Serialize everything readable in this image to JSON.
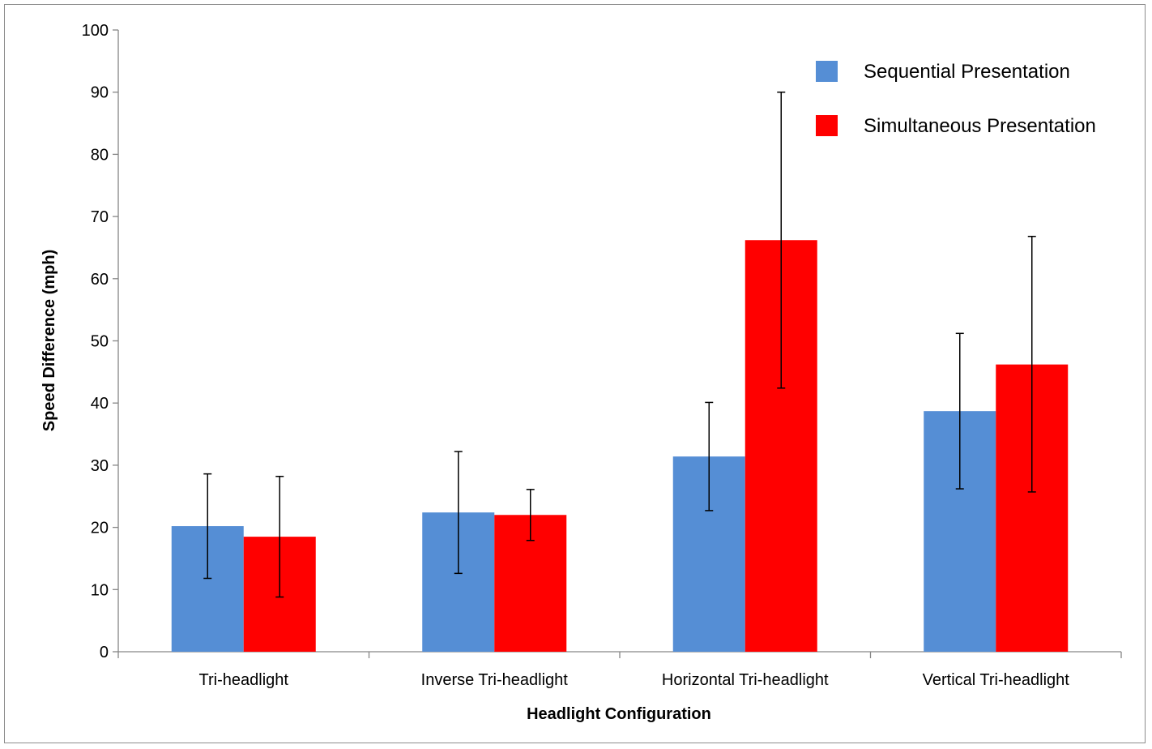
{
  "chart_data": {
    "type": "bar",
    "xlabel": "Headlight Configuration",
    "ylabel": "Speed Difference (mph)",
    "ylim": [
      0,
      100
    ],
    "yticks": [
      0,
      10,
      20,
      30,
      40,
      50,
      60,
      70,
      80,
      90,
      100
    ],
    "categories": [
      "Tri-headlight",
      "Inverse Tri-headlight",
      "Horizontal Tri-headlight",
      "Vertical Tri-headlight"
    ],
    "series": [
      {
        "name": "Sequential Presentation",
        "color": "#558ED5",
        "values": [
          20.2,
          22.4,
          31.4,
          38.7
        ],
        "error_low": [
          11.8,
          12.6,
          22.7,
          26.2
        ],
        "error_high": [
          28.6,
          32.2,
          40.1,
          51.2
        ]
      },
      {
        "name": "Simultaneous Presentation",
        "color": "#FF0000",
        "values": [
          18.5,
          22.0,
          66.2,
          46.2
        ],
        "error_low": [
          8.8,
          17.9,
          42.4,
          25.7
        ],
        "error_high": [
          28.2,
          26.1,
          90.0,
          66.8
        ]
      }
    ],
    "legend_position": "top-right",
    "grid": false
  }
}
